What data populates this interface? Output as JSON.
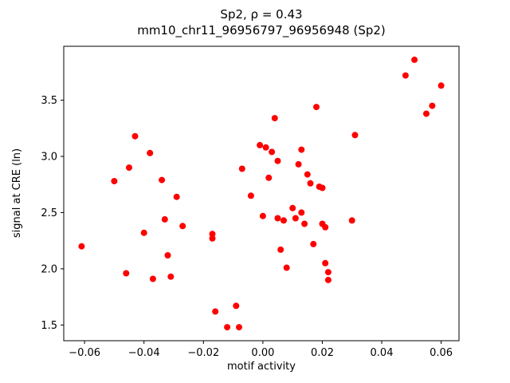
{
  "figure": {
    "background": "#ffffff",
    "accent_color": "#ff0000"
  },
  "chart_data": {
    "type": "scatter",
    "title": "Sp2, ρ = 0.43",
    "subtitle": "mm10_chr11_96956797_96956948 (Sp2)",
    "xlabel": "motif activity",
    "ylabel": "signal at CRE (ln)",
    "xlim": [
      -0.067,
      0.066
    ],
    "ylim": [
      1.36,
      3.98
    ],
    "xticks": [
      -0.06,
      -0.04,
      -0.02,
      0.0,
      0.02,
      0.04,
      0.06
    ],
    "xtick_labels": [
      "−0.06",
      "−0.04",
      "−0.02",
      "0.00",
      "0.02",
      "0.04",
      "0.06"
    ],
    "yticks": [
      1.5,
      2.0,
      2.5,
      3.0,
      3.5
    ],
    "ytick_labels": [
      "1.5",
      "2.0",
      "2.5",
      "3.0",
      "3.5"
    ],
    "grid": false,
    "legend": null,
    "marker": {
      "color": "#ff0000",
      "size": 8
    },
    "points": [
      [
        -0.061,
        2.2
      ],
      [
        -0.05,
        2.78
      ],
      [
        -0.046,
        1.96
      ],
      [
        -0.045,
        2.9
      ],
      [
        -0.043,
        3.18
      ],
      [
        -0.04,
        2.32
      ],
      [
        -0.038,
        3.03
      ],
      [
        -0.037,
        1.91
      ],
      [
        -0.034,
        2.79
      ],
      [
        -0.033,
        2.44
      ],
      [
        -0.032,
        2.12
      ],
      [
        -0.031,
        1.93
      ],
      [
        -0.029,
        2.64
      ],
      [
        -0.027,
        2.38
      ],
      [
        -0.017,
        2.31
      ],
      [
        -0.017,
        2.27
      ],
      [
        -0.016,
        1.62
      ],
      [
        -0.012,
        1.48
      ],
      [
        -0.009,
        1.67
      ],
      [
        -0.008,
        1.48
      ],
      [
        -0.007,
        2.89
      ],
      [
        -0.004,
        2.65
      ],
      [
        -0.001,
        3.1
      ],
      [
        0.0,
        2.47
      ],
      [
        0.001,
        3.08
      ],
      [
        0.002,
        2.81
      ],
      [
        0.003,
        3.04
      ],
      [
        0.004,
        3.34
      ],
      [
        0.005,
        2.96
      ],
      [
        0.005,
        2.45
      ],
      [
        0.006,
        2.17
      ],
      [
        0.007,
        2.43
      ],
      [
        0.008,
        2.01
      ],
      [
        0.01,
        2.54
      ],
      [
        0.011,
        2.45
      ],
      [
        0.012,
        2.93
      ],
      [
        0.013,
        3.06
      ],
      [
        0.013,
        2.5
      ],
      [
        0.014,
        2.4
      ],
      [
        0.015,
        2.84
      ],
      [
        0.016,
        2.76
      ],
      [
        0.017,
        2.22
      ],
      [
        0.018,
        3.44
      ],
      [
        0.019,
        2.73
      ],
      [
        0.02,
        2.72
      ],
      [
        0.02,
        2.4
      ],
      [
        0.021,
        2.37
      ],
      [
        0.021,
        2.05
      ],
      [
        0.022,
        1.97
      ],
      [
        0.022,
        1.9
      ],
      [
        0.03,
        2.43
      ],
      [
        0.031,
        3.19
      ],
      [
        0.048,
        3.72
      ],
      [
        0.051,
        3.86
      ],
      [
        0.055,
        3.38
      ],
      [
        0.057,
        3.45
      ],
      [
        0.06,
        3.63
      ]
    ]
  }
}
